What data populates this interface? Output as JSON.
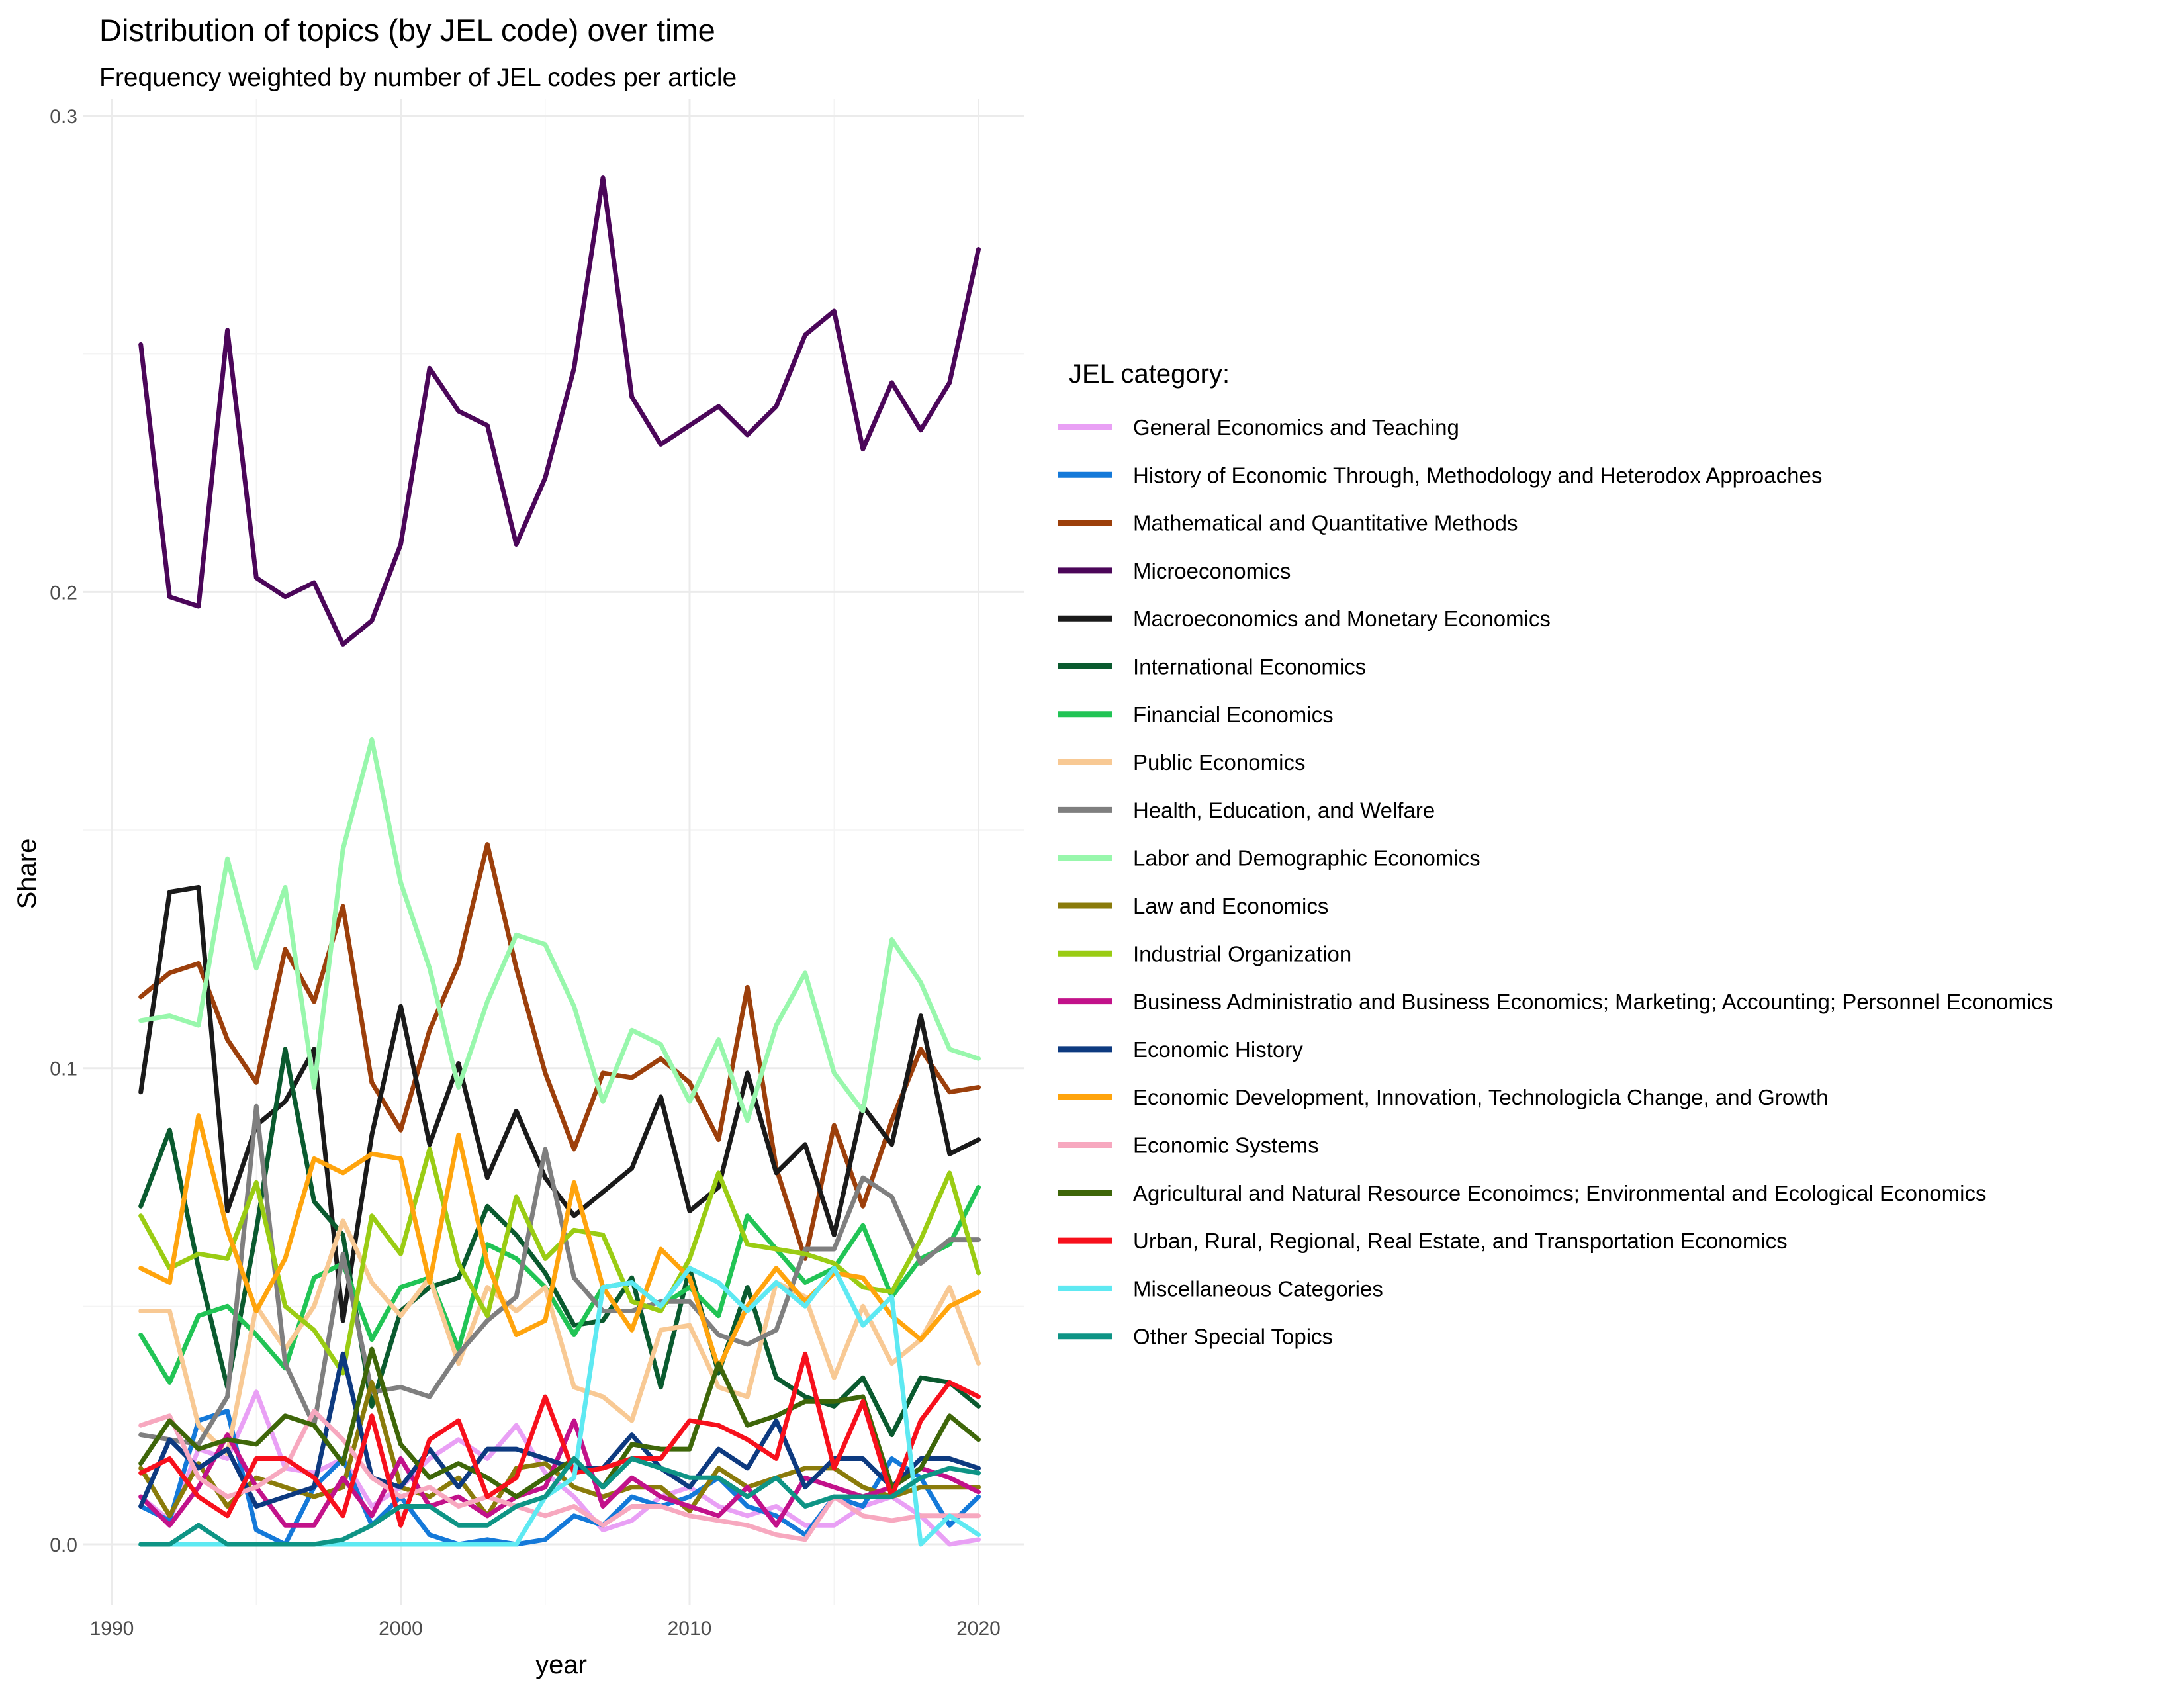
{
  "chart_data": {
    "type": "line",
    "title": "Distribution of topics (by JEL code) over time",
    "subtitle": "Frequency weighted by number of JEL codes per article",
    "xlabel": "year",
    "ylabel": "Share",
    "xlim": [
      1991,
      2020
    ],
    "ylim": [
      0,
      0.3
    ],
    "x_ticks": [
      1990,
      2000,
      2010,
      2020
    ],
    "y_ticks": [
      0.0,
      0.1,
      0.2,
      0.3
    ],
    "y_tick_labels": [
      "0.0",
      "0.1",
      "0.2",
      "0.3"
    ],
    "grid": true,
    "legend_title": "JEL category:",
    "legend_position": "right",
    "x": [
      1991,
      1992,
      1993,
      1994,
      1995,
      1996,
      1997,
      1998,
      1999,
      2000,
      2001,
      2002,
      2003,
      2004,
      2005,
      2006,
      2007,
      2008,
      2009,
      2010,
      2011,
      2012,
      2013,
      2014,
      2015,
      2016,
      2017,
      2018,
      2019,
      2020
    ],
    "series": [
      {
        "name": "General Economics and Teaching",
        "color": "#e9a0f5",
        "values": [
          0.01,
          0.005,
          0.02,
          0.018,
          0.032,
          0.016,
          0.015,
          0.018,
          0.008,
          0.012,
          0.018,
          0.022,
          0.018,
          0.025,
          0.015,
          0.01,
          0.003,
          0.005,
          0.01,
          0.012,
          0.008,
          0.006,
          0.008,
          0.004,
          0.004,
          0.008,
          0.01,
          0.006,
          0.0,
          0.001
        ]
      },
      {
        "name": "History of Economic Through, Methodology and Heterodox Approaches",
        "color": "#1479d9",
        "values": [
          0.008,
          0.005,
          0.026,
          0.028,
          0.003,
          0.0,
          0.012,
          0.018,
          0.004,
          0.01,
          0.002,
          0.0,
          0.001,
          0.0,
          0.001,
          0.006,
          0.004,
          0.01,
          0.008,
          0.01,
          0.014,
          0.008,
          0.006,
          0.002,
          0.01,
          0.008,
          0.018,
          0.014,
          0.004,
          0.01
        ]
      },
      {
        "name": "Mathematical and Quantitative Methods",
        "color": "#9c3f0b",
        "values": [
          0.115,
          0.12,
          0.122,
          0.106,
          0.097,
          0.125,
          0.114,
          0.134,
          0.097,
          0.087,
          0.108,
          0.122,
          0.147,
          0.121,
          0.099,
          0.083,
          0.099,
          0.098,
          0.102,
          0.097,
          0.085,
          0.117,
          0.079,
          0.06,
          0.088,
          0.071,
          0.089,
          0.104,
          0.095,
          0.096
        ]
      },
      {
        "name": "Microeconomics",
        "color": "#4b0659",
        "values": [
          0.252,
          0.199,
          0.197,
          0.255,
          0.203,
          0.199,
          0.202,
          0.189,
          0.194,
          0.21,
          0.247,
          0.238,
          0.235,
          0.21,
          0.224,
          0.247,
          0.287,
          0.241,
          0.231,
          0.235,
          0.239,
          0.233,
          0.239,
          0.254,
          0.259,
          0.23,
          0.244,
          0.234,
          0.244,
          0.272
        ]
      },
      {
        "name": "Macroeconomics and Monetary Economics",
        "color": "#1a1a1a",
        "values": [
          0.095,
          0.137,
          0.138,
          0.07,
          0.088,
          0.093,
          0.104,
          0.047,
          0.086,
          0.113,
          0.084,
          0.101,
          0.077,
          0.091,
          0.077,
          0.069,
          0.074,
          0.079,
          0.094,
          0.07,
          0.075,
          0.099,
          0.078,
          0.084,
          0.065,
          0.092,
          0.084,
          0.111,
          0.082,
          0.085
        ]
      },
      {
        "name": "International Economics",
        "color": "#0a5a2f",
        "values": [
          0.071,
          0.087,
          0.058,
          0.033,
          0.066,
          0.104,
          0.072,
          0.065,
          0.029,
          0.049,
          0.054,
          0.056,
          0.071,
          0.065,
          0.057,
          0.046,
          0.047,
          0.056,
          0.033,
          0.058,
          0.036,
          0.054,
          0.035,
          0.031,
          0.029,
          0.035,
          0.023,
          0.035,
          0.034,
          0.029
        ]
      },
      {
        "name": "Financial Economics",
        "color": "#21c455",
        "values": [
          0.044,
          0.034,
          0.048,
          0.05,
          0.044,
          0.037,
          0.056,
          0.059,
          0.043,
          0.054,
          0.056,
          0.041,
          0.063,
          0.06,
          0.054,
          0.044,
          0.054,
          0.055,
          0.05,
          0.054,
          0.048,
          0.069,
          0.062,
          0.055,
          0.058,
          0.067,
          0.052,
          0.06,
          0.063,
          0.075
        ]
      },
      {
        "name": "Public Economics",
        "color": "#f8c994",
        "values": [
          0.049,
          0.049,
          0.025,
          0.019,
          0.05,
          0.041,
          0.05,
          0.068,
          0.055,
          0.048,
          0.056,
          0.038,
          0.054,
          0.049,
          0.054,
          0.033,
          0.031,
          0.026,
          0.045,
          0.046,
          0.033,
          0.031,
          0.055,
          0.052,
          0.035,
          0.05,
          0.038,
          0.043,
          0.054,
          0.038
        ]
      },
      {
        "name": "Health, Education, and Welfare",
        "color": "#7f7f7f",
        "values": [
          0.023,
          0.022,
          0.021,
          0.031,
          0.092,
          0.038,
          0.025,
          0.061,
          0.032,
          0.033,
          0.031,
          0.04,
          0.047,
          0.052,
          0.083,
          0.056,
          0.049,
          0.049,
          0.051,
          0.051,
          0.044,
          0.042,
          0.045,
          0.062,
          0.062,
          0.077,
          0.073,
          0.059,
          0.064,
          0.064
        ]
      },
      {
        "name": "Labor and Demographic Economics",
        "color": "#98f7ac",
        "values": [
          0.11,
          0.111,
          0.109,
          0.144,
          0.121,
          0.138,
          0.096,
          0.146,
          0.169,
          0.139,
          0.121,
          0.096,
          0.114,
          0.128,
          0.126,
          0.113,
          0.093,
          0.108,
          0.105,
          0.093,
          0.106,
          0.089,
          0.109,
          0.12,
          0.099,
          0.091,
          0.127,
          0.118,
          0.104,
          0.102
        ]
      },
      {
        "name": "Law and Economics",
        "color": "#8a7b0b",
        "values": [
          0.016,
          0.006,
          0.017,
          0.008,
          0.014,
          0.012,
          0.01,
          0.012,
          0.034,
          0.012,
          0.01,
          0.014,
          0.006,
          0.016,
          0.017,
          0.012,
          0.01,
          0.012,
          0.012,
          0.007,
          0.016,
          0.012,
          0.014,
          0.016,
          0.016,
          0.012,
          0.01,
          0.012,
          0.012,
          0.012
        ]
      },
      {
        "name": "Industrial Organization",
        "color": "#9acc13",
        "values": [
          0.069,
          0.058,
          0.061,
          0.06,
          0.076,
          0.05,
          0.045,
          0.036,
          0.069,
          0.061,
          0.083,
          0.059,
          0.048,
          0.073,
          0.06,
          0.066,
          0.065,
          0.051,
          0.049,
          0.06,
          0.078,
          0.063,
          0.062,
          0.061,
          0.059,
          0.054,
          0.053,
          0.064,
          0.078,
          0.057
        ]
      },
      {
        "name": "Business Administratio and Business Economics; Marketing; Accounting; Personnel Economics",
        "color": "#c2128a",
        "values": [
          0.01,
          0.004,
          0.012,
          0.023,
          0.012,
          0.004,
          0.004,
          0.014,
          0.006,
          0.018,
          0.008,
          0.01,
          0.006,
          0.01,
          0.012,
          0.026,
          0.008,
          0.014,
          0.01,
          0.008,
          0.006,
          0.012,
          0.004,
          0.014,
          0.012,
          0.01,
          0.012,
          0.016,
          0.014,
          0.011
        ]
      },
      {
        "name": "Economic History",
        "color": "#0d3a80",
        "values": [
          0.008,
          0.022,
          0.016,
          0.02,
          0.008,
          0.01,
          0.012,
          0.04,
          0.014,
          0.012,
          0.02,
          0.012,
          0.02,
          0.02,
          0.018,
          0.016,
          0.016,
          0.023,
          0.016,
          0.012,
          0.02,
          0.016,
          0.026,
          0.012,
          0.018,
          0.018,
          0.012,
          0.018,
          0.018,
          0.016
        ]
      },
      {
        "name": "Economic Development, Innovation, Technologicla Change, and Growth",
        "color": "#ffa40d",
        "values": [
          0.058,
          0.055,
          0.09,
          0.066,
          0.049,
          0.06,
          0.081,
          0.078,
          0.082,
          0.081,
          0.055,
          0.086,
          0.059,
          0.044,
          0.047,
          0.076,
          0.054,
          0.045,
          0.062,
          0.056,
          0.037,
          0.05,
          0.058,
          0.051,
          0.057,
          0.056,
          0.048,
          0.043,
          0.05,
          0.053
        ]
      },
      {
        "name": "Economic Systems",
        "color": "#f7a8bf",
        "values": [
          0.025,
          0.027,
          0.014,
          0.01,
          0.012,
          0.016,
          0.028,
          0.022,
          0.014,
          0.01,
          0.012,
          0.008,
          0.01,
          0.008,
          0.006,
          0.008,
          0.004,
          0.008,
          0.008,
          0.006,
          0.005,
          0.004,
          0.002,
          0.001,
          0.01,
          0.006,
          0.005,
          0.006,
          0.006,
          0.006
        ]
      },
      {
        "name": "Agricultural and Natural Resource Econoimcs; Environmental and Ecological Economics",
        "color": "#3e6609",
        "values": [
          0.017,
          0.026,
          0.02,
          0.022,
          0.021,
          0.027,
          0.025,
          0.017,
          0.041,
          0.021,
          0.014,
          0.017,
          0.014,
          0.01,
          0.014,
          0.018,
          0.012,
          0.021,
          0.02,
          0.02,
          0.038,
          0.025,
          0.027,
          0.03,
          0.03,
          0.031,
          0.012,
          0.016,
          0.027,
          0.022
        ]
      },
      {
        "name": "Urban, Rural, Regional, Real Estate, and Transportation Economics",
        "color": "#f7101c",
        "values": [
          0.015,
          0.018,
          0.01,
          0.006,
          0.018,
          0.018,
          0.014,
          0.006,
          0.027,
          0.004,
          0.022,
          0.026,
          0.01,
          0.014,
          0.031,
          0.015,
          0.016,
          0.018,
          0.018,
          0.026,
          0.025,
          0.022,
          0.018,
          0.04,
          0.016,
          0.03,
          0.01,
          0.026,
          0.034,
          0.031
        ]
      },
      {
        "name": "Miscellaneous Categories",
        "color": "#5ee9f2",
        "values": [
          0.0,
          0.0,
          0.0,
          0.0,
          0.0,
          0.0,
          0.0,
          0.0,
          0.0,
          0.0,
          0.0,
          0.0,
          0.0,
          0.0,
          0.01,
          0.014,
          0.054,
          0.055,
          0.05,
          0.058,
          0.055,
          0.049,
          0.055,
          0.05,
          0.058,
          0.046,
          0.052,
          0.0,
          0.006,
          0.002
        ]
      },
      {
        "name": "Other Special Topics",
        "color": "#0e9485",
        "values": [
          0.0,
          0.0,
          0.004,
          0.0,
          0.0,
          0.0,
          0.0,
          0.001,
          0.004,
          0.008,
          0.008,
          0.004,
          0.004,
          0.008,
          0.01,
          0.018,
          0.012,
          0.018,
          0.016,
          0.014,
          0.014,
          0.01,
          0.014,
          0.008,
          0.01,
          0.01,
          0.01,
          0.014,
          0.016,
          0.015
        ]
      }
    ]
  }
}
